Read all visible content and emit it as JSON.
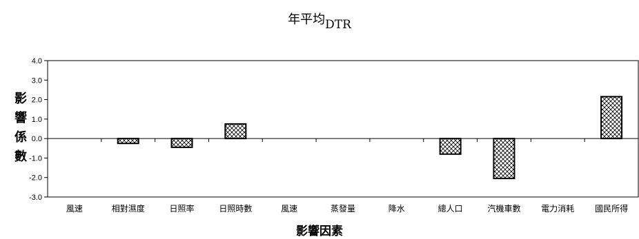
{
  "chart_data": {
    "type": "bar",
    "title": "年平均",
    "title_subscript": "DTR",
    "ylabel": "影響係數",
    "xlabel": "影響因素",
    "categories": [
      "風速",
      "相對濕度",
      "日照率",
      "日照時數",
      "風速",
      "蒸發量",
      "降水",
      "總人口",
      "汽機車數",
      "電力消耗",
      "國民所得"
    ],
    "values": [
      0,
      -0.25,
      -0.45,
      0.75,
      0,
      0,
      0,
      -0.8,
      -2.05,
      0,
      2.15
    ],
    "ylim": [
      -3.0,
      4.0
    ],
    "yticks": [
      "4.0",
      "3.0",
      "2.0",
      "1.0",
      "0.0",
      "-1.0",
      "-2.0",
      "-3.0"
    ],
    "ytick_values": [
      4,
      3,
      2,
      1,
      0,
      -1,
      -2,
      -3
    ],
    "grid": false,
    "legend": "none",
    "bar_fill": "crosshatch",
    "colors": {
      "axis": "#000000",
      "bar_stroke": "#000000",
      "hatch": "#000000",
      "background": "#ffffff"
    }
  }
}
